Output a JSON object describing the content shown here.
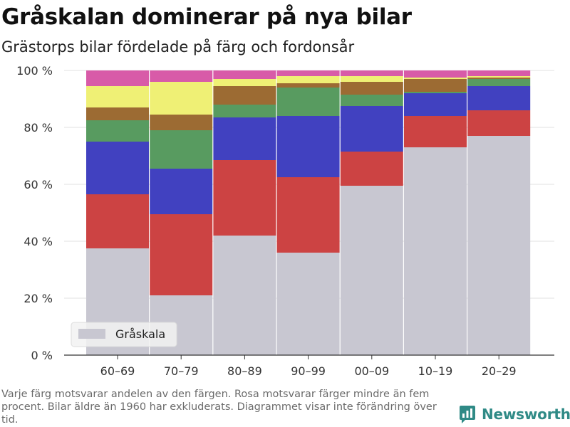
{
  "header": {
    "title": "Gråskalan dominerar på nya bilar",
    "subtitle": "Grästorps bilar fördelade på färg och fordonsår"
  },
  "chart_data": {
    "type": "bar",
    "stacked": true,
    "categories": [
      "60–69",
      "70–79",
      "80–89",
      "90–99",
      "00–09",
      "10–19",
      "20–29"
    ],
    "series": [
      {
        "name": "Gråskala",
        "color": "#c8c7d1",
        "values": [
          37.5,
          21,
          42,
          36,
          59.5,
          73,
          77
        ]
      },
      {
        "name": "",
        "color": "#cc4343",
        "values": [
          19,
          28.5,
          26.5,
          26.5,
          12,
          11,
          9
        ]
      },
      {
        "name": "",
        "color": "#4141c0",
        "values": [
          18.5,
          16,
          15,
          21.5,
          16,
          8,
          8.5
        ]
      },
      {
        "name": "",
        "color": "#589b60",
        "values": [
          7.5,
          13.5,
          4.5,
          10,
          4,
          0.5,
          2.5
        ]
      },
      {
        "name": "",
        "color": "#9c6b33",
        "values": [
          4.5,
          5.5,
          6.5,
          1.5,
          4.5,
          4.5,
          0.5
        ]
      },
      {
        "name": "",
        "color": "#eff075",
        "values": [
          7.5,
          11.5,
          2.5,
          2.5,
          2,
          0.5,
          0.5
        ]
      },
      {
        "name": "",
        "color": "#d85ba8",
        "values": [
          5.5,
          4,
          3,
          2,
          2,
          2.5,
          2
        ]
      }
    ],
    "y_ticks": [
      "0 %",
      "20 %",
      "40 %",
      "60 %",
      "80 %",
      "100 %"
    ],
    "ylim": [
      0,
      100
    ],
    "xlabel": "",
    "ylabel": "",
    "grid": true,
    "legend": {
      "position": "bottom-left",
      "entries": [
        "Gråskala"
      ]
    }
  },
  "footnote": "Varje färg motsvarar andelen av den färgen. Rosa motsvarar färger mindre än fem procent. Bilar äldre än 1960 har exkluderats. Diagrammet visar inte förändring över tid.",
  "brand": {
    "name": "Newsworthy",
    "icon": "bar-chart-logo-icon",
    "color": "#2f8a86"
  }
}
